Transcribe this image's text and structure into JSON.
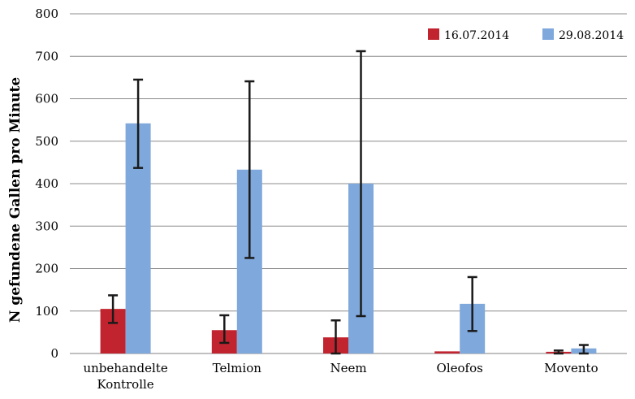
{
  "chart_data": {
    "type": "bar",
    "title": "",
    "xlabel": "",
    "ylabel": "N gefundene Gallen pro Minute",
    "ylim": [
      0,
      800
    ],
    "yticks": [
      0,
      100,
      200,
      300,
      400,
      500,
      600,
      700,
      800
    ],
    "grid": true,
    "legend_position": "top-right",
    "categories": [
      [
        "unbehandelte",
        "Kontrolle"
      ],
      [
        "Telmion"
      ],
      [
        "Neem"
      ],
      [
        "Oleofos"
      ],
      [
        "Movento"
      ]
    ],
    "series": [
      {
        "name": "16.07.2014",
        "color": "#c1242e",
        "values": [
          105,
          55,
          38,
          5,
          4
        ],
        "error_low": [
          72,
          25,
          0,
          null,
          0
        ],
        "error_high": [
          137,
          90,
          78,
          null,
          7
        ]
      },
      {
        "name": "29.08.2014",
        "color": "#7fa8dc",
        "values": [
          542,
          433,
          400,
          117,
          12
        ],
        "error_low": [
          437,
          225,
          88,
          53,
          0
        ],
        "error_high": [
          645,
          641,
          712,
          180,
          20
        ]
      }
    ]
  }
}
